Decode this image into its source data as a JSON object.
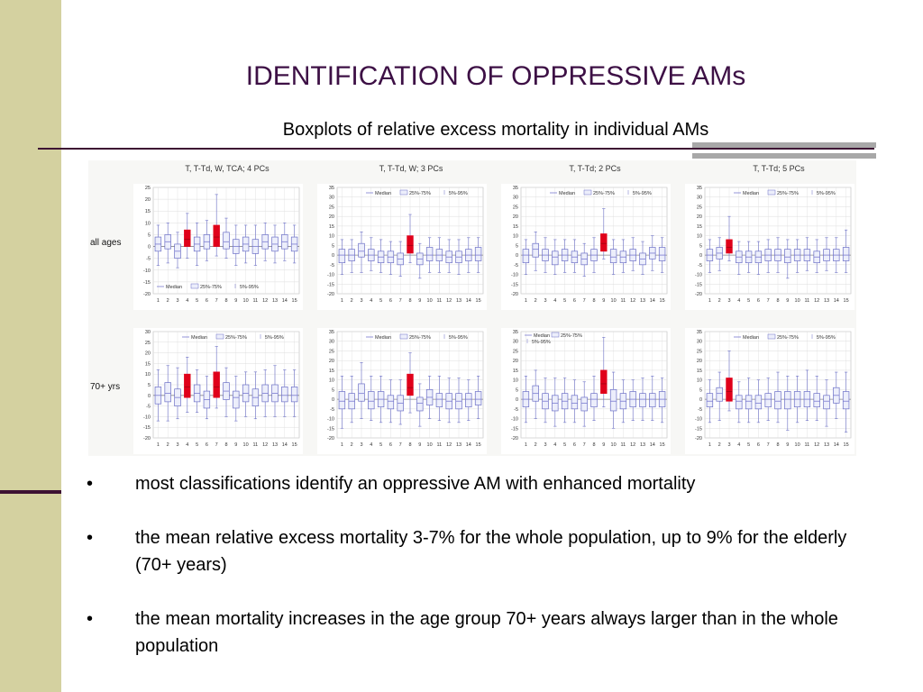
{
  "slide": {
    "title": "IDENTIFICATION OF OPPRESSIVE AMs",
    "subtitle": "Boxplots of relative excess mortality in individual AMs",
    "colors": {
      "title": "#3d1045",
      "sidebar": "#d4d1a0",
      "accent_line": "#3d1233",
      "grey_bars": "#a8a8a8"
    }
  },
  "bullets": [
    {
      "marker": "•",
      "text": "most classifications identify an oppressive AM with enhanced mortality"
    },
    {
      "marker": "•",
      "text": "the mean relative excess mortality 3-7% for the whole population, up to 9% for the elderly (70+ years)"
    },
    {
      "marker": "•",
      "text": "the mean mortality increases in the age group 70+ years always larger than in the whole population"
    }
  ],
  "chart_data": {
    "type": "boxplot",
    "column_titles": [
      "T, T-Td, W, TCA; 4 PCs",
      "T, T-Td, W; 3 PCs",
      "T, T-Td; 2 PCs",
      "T, T-Td; 5 PCs"
    ],
    "row_labels": [
      "all ages",
      "70+ yrs"
    ],
    "x_categories": [
      "1",
      "2",
      "3",
      "4",
      "5",
      "6",
      "7",
      "8",
      "9",
      "10",
      "11",
      "12",
      "13",
      "14",
      "15"
    ],
    "legend": {
      "median": "Median",
      "iqr": "25%-75%",
      "whisker": "5%-95%"
    },
    "colors": {
      "box": "#6b6fc6",
      "highlight": "#e0001a",
      "grid": "#dddddd",
      "median": "#7a7ad0"
    },
    "panels": [
      {
        "row": 0,
        "col": 0,
        "ylim": [
          -20,
          25
        ],
        "yticks": [
          -20,
          -15,
          -10,
          -5,
          0,
          5,
          10,
          15,
          20,
          25
        ],
        "legend_pos": "bottom-left",
        "highlight": [
          4,
          7
        ],
        "boxes": [
          [
            -8,
            -2,
            1,
            4,
            9
          ],
          [
            -7,
            -1,
            2,
            5,
            10
          ],
          [
            -9,
            -5,
            -2,
            1,
            6
          ],
          [
            -5,
            0,
            3,
            7,
            14
          ],
          [
            -8,
            -2,
            1,
            4,
            10
          ],
          [
            -6,
            -1,
            2,
            5,
            11
          ],
          [
            -4,
            0,
            4,
            9,
            22
          ],
          [
            -5,
            -1,
            2,
            6,
            12
          ],
          [
            -8,
            -3,
            0,
            3,
            9
          ],
          [
            -7,
            -2,
            1,
            4,
            9
          ],
          [
            -8,
            -3,
            0,
            3,
            9
          ],
          [
            -6,
            -1,
            2,
            5,
            10
          ],
          [
            -7,
            -2,
            1,
            4,
            9
          ],
          [
            -6,
            -1,
            2,
            5,
            10
          ],
          [
            -7,
            -2,
            1,
            4,
            9
          ]
        ]
      },
      {
        "row": 0,
        "col": 1,
        "ylim": [
          -20,
          35
        ],
        "yticks": [
          -20,
          -15,
          -10,
          -5,
          0,
          5,
          10,
          15,
          20,
          25,
          30,
          35
        ],
        "legend_pos": "top",
        "highlight": [
          8
        ],
        "boxes": [
          [
            -10,
            -4,
            0,
            3,
            8
          ],
          [
            -9,
            -3,
            0,
            3,
            8
          ],
          [
            -9,
            -1,
            2,
            6,
            12
          ],
          [
            -8,
            -3,
            0,
            3,
            9
          ],
          [
            -9,
            -4,
            -1,
            2,
            8
          ],
          [
            -10,
            -4,
            -1,
            2,
            7
          ],
          [
            -11,
            -5,
            -2,
            1,
            7
          ],
          [
            -4,
            1,
            5,
            10,
            21
          ],
          [
            -12,
            -5,
            -2,
            1,
            6
          ],
          [
            -9,
            -3,
            0,
            4,
            9
          ],
          [
            -9,
            -3,
            0,
            3,
            9
          ],
          [
            -9,
            -4,
            -1,
            2,
            8
          ],
          [
            -10,
            -4,
            -1,
            2,
            8
          ],
          [
            -9,
            -3,
            0,
            3,
            9
          ],
          [
            -9,
            -3,
            0,
            4,
            9
          ]
        ]
      },
      {
        "row": 0,
        "col": 2,
        "ylim": [
          -20,
          35
        ],
        "yticks": [
          -20,
          -15,
          -10,
          -5,
          0,
          5,
          10,
          15,
          20,
          25,
          30,
          35
        ],
        "legend_pos": "top",
        "highlight": [
          9
        ],
        "boxes": [
          [
            -10,
            -4,
            0,
            3,
            8
          ],
          [
            -8,
            -1,
            3,
            6,
            12
          ],
          [
            -9,
            -3,
            0,
            3,
            9
          ],
          [
            -10,
            -5,
            -1,
            2,
            8
          ],
          [
            -9,
            -3,
            0,
            3,
            8
          ],
          [
            -9,
            -4,
            -1,
            2,
            8
          ],
          [
            -11,
            -5,
            -2,
            1,
            6
          ],
          [
            -9,
            -3,
            0,
            3,
            9
          ],
          [
            -2,
            2,
            6,
            11,
            24
          ],
          [
            -10,
            -4,
            -1,
            3,
            8
          ],
          [
            -9,
            -4,
            -1,
            2,
            8
          ],
          [
            -8,
            -3,
            0,
            3,
            9
          ],
          [
            -10,
            -5,
            -2,
            1,
            7
          ],
          [
            -8,
            -2,
            1,
            4,
            10
          ],
          [
            -9,
            -3,
            0,
            4,
            9
          ]
        ]
      },
      {
        "row": 0,
        "col": 3,
        "ylim": [
          -20,
          35
        ],
        "yticks": [
          -20,
          -15,
          -10,
          -5,
          0,
          5,
          10,
          15,
          20,
          25,
          30,
          35
        ],
        "legend_pos": "top",
        "highlight": [
          3
        ],
        "boxes": [
          [
            -9,
            -3,
            0,
            3,
            8
          ],
          [
            -8,
            -2,
            1,
            4,
            9
          ],
          [
            -3,
            1,
            4,
            8,
            20
          ],
          [
            -10,
            -4,
            -1,
            2,
            7
          ],
          [
            -9,
            -4,
            -1,
            2,
            7
          ],
          [
            -10,
            -4,
            -1,
            2,
            7
          ],
          [
            -9,
            -3,
            0,
            3,
            8
          ],
          [
            -9,
            -3,
            0,
            3,
            9
          ],
          [
            -12,
            -4,
            -1,
            3,
            8
          ],
          [
            -9,
            -3,
            0,
            3,
            8
          ],
          [
            -8,
            -3,
            0,
            3,
            9
          ],
          [
            -9,
            -4,
            -1,
            2,
            8
          ],
          [
            -8,
            -3,
            0,
            3,
            9
          ],
          [
            -9,
            -3,
            0,
            3,
            9
          ],
          [
            -9,
            -3,
            0,
            4,
            13
          ]
        ]
      },
      {
        "row": 1,
        "col": 0,
        "ylim": [
          -20,
          30
        ],
        "yticks": [
          -20,
          -15,
          -10,
          -5,
          0,
          5,
          10,
          15,
          20,
          25,
          30
        ],
        "legend_pos": "top",
        "highlight": [
          4,
          7
        ],
        "boxes": [
          [
            -12,
            -4,
            0,
            4,
            12
          ],
          [
            -12,
            -3,
            1,
            6,
            14
          ],
          [
            -11,
            -5,
            -1,
            3,
            13
          ],
          [
            -8,
            -1,
            4,
            10,
            18
          ],
          [
            -8,
            -3,
            1,
            5,
            12
          ],
          [
            -11,
            -6,
            -2,
            2,
            9
          ],
          [
            -6,
            -1,
            4,
            11,
            23
          ],
          [
            -10,
            -2,
            2,
            6,
            13
          ],
          [
            -12,
            -6,
            -1,
            2,
            9
          ],
          [
            -10,
            -3,
            1,
            5,
            11
          ],
          [
            -11,
            -5,
            -1,
            3,
            11
          ],
          [
            -10,
            -3,
            1,
            5,
            12
          ],
          [
            -10,
            -3,
            1,
            5,
            14
          ],
          [
            -10,
            -3,
            0,
            4,
            12
          ],
          [
            -10,
            -3,
            0,
            4,
            12
          ]
        ]
      },
      {
        "row": 1,
        "col": 1,
        "ylim": [
          -20,
          35
        ],
        "yticks": [
          -20,
          -15,
          -10,
          -5,
          0,
          5,
          10,
          15,
          20,
          25,
          30,
          35
        ],
        "legend_pos": "top",
        "highlight": [
          8
        ],
        "boxes": [
          [
            -15,
            -5,
            -1,
            4,
            12
          ],
          [
            -12,
            -5,
            -1,
            3,
            12
          ],
          [
            -10,
            -1,
            3,
            8,
            19
          ],
          [
            -11,
            -5,
            -1,
            4,
            12
          ],
          [
            -12,
            -4,
            0,
            4,
            12
          ],
          [
            -12,
            -5,
            -1,
            2,
            10
          ],
          [
            -13,
            -6,
            -2,
            2,
            10
          ],
          [
            -7,
            2,
            6,
            13,
            24
          ],
          [
            -14,
            -6,
            -2,
            1,
            8
          ],
          [
            -10,
            -3,
            1,
            5,
            12
          ],
          [
            -11,
            -4,
            0,
            3,
            12
          ],
          [
            -12,
            -5,
            -1,
            3,
            11
          ],
          [
            -12,
            -5,
            -1,
            3,
            11
          ],
          [
            -11,
            -4,
            0,
            3,
            10
          ],
          [
            -10,
            -3,
            0,
            4,
            12
          ]
        ]
      },
      {
        "row": 1,
        "col": 2,
        "ylim": [
          -20,
          35
        ],
        "yticks": [
          -20,
          -15,
          -10,
          -5,
          0,
          5,
          10,
          15,
          20,
          25,
          30,
          35
        ],
        "legend_pos": "top-left",
        "highlight": [
          9
        ],
        "boxes": [
          [
            -12,
            -4,
            0,
            4,
            12
          ],
          [
            -10,
            -1,
            3,
            7,
            15
          ],
          [
            -12,
            -5,
            -1,
            3,
            11
          ],
          [
            -14,
            -6,
            -2,
            2,
            11
          ],
          [
            -12,
            -5,
            -1,
            3,
            11
          ],
          [
            -12,
            -5,
            -2,
            2,
            10
          ],
          [
            -14,
            -6,
            -2,
            1,
            9
          ],
          [
            -11,
            -4,
            0,
            3,
            12
          ],
          [
            -4,
            3,
            8,
            15,
            32
          ],
          [
            -15,
            -6,
            -1,
            5,
            14
          ],
          [
            -12,
            -5,
            -1,
            3,
            10
          ],
          [
            -11,
            -4,
            0,
            4,
            10
          ],
          [
            -11,
            -4,
            0,
            3,
            11
          ],
          [
            -11,
            -4,
            0,
            3,
            12
          ],
          [
            -12,
            -4,
            0,
            4,
            11
          ]
        ]
      },
      {
        "row": 1,
        "col": 3,
        "ylim": [
          -20,
          35
        ],
        "yticks": [
          -20,
          -15,
          -10,
          -5,
          0,
          5,
          10,
          15,
          20,
          25,
          30,
          35
        ],
        "legend_pos": "top",
        "highlight": [
          3
        ],
        "boxes": [
          [
            -12,
            -4,
            -1,
            3,
            10
          ],
          [
            -11,
            -1,
            3,
            6,
            14
          ],
          [
            -6,
            -1,
            4,
            11,
            25
          ],
          [
            -12,
            -5,
            -1,
            2,
            9
          ],
          [
            -12,
            -5,
            -1,
            2,
            11
          ],
          [
            -12,
            -5,
            -2,
            2,
            10
          ],
          [
            -11,
            -4,
            0,
            3,
            11
          ],
          [
            -12,
            -5,
            -1,
            4,
            14
          ],
          [
            -16,
            -5,
            0,
            4,
            12
          ],
          [
            -12,
            -4,
            0,
            4,
            12
          ],
          [
            -11,
            -4,
            0,
            4,
            15
          ],
          [
            -11,
            -4,
            -1,
            3,
            12
          ],
          [
            -14,
            -5,
            -1,
            2,
            10
          ],
          [
            -10,
            -2,
            2,
            6,
            14
          ],
          [
            -17,
            -5,
            -1,
            4,
            14
          ]
        ]
      }
    ]
  }
}
